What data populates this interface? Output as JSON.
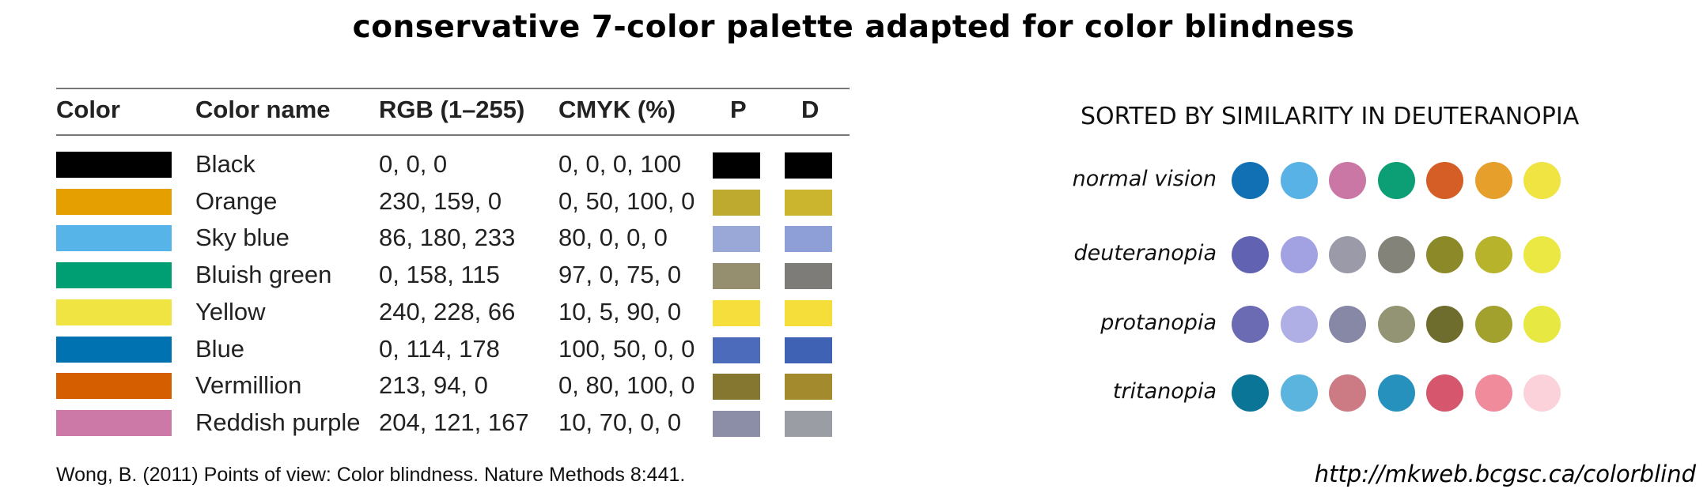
{
  "title": "conservative 7-color palette adapted for color blindness",
  "table": {
    "headers": [
      "Color",
      "Color name",
      "RGB (1–255)",
      "CMYK (%)",
      "P",
      "D"
    ],
    "rows": [
      {
        "swatch": "#000000",
        "name": "Black",
        "rgb": "0, 0, 0",
        "cmyk": "0, 0, 0, 100",
        "p": "#000000",
        "d": "#000000"
      },
      {
        "swatch": "#E69F00",
        "name": "Orange",
        "rgb": "230, 159, 0",
        "cmyk": "0, 50, 100, 0",
        "p": "#BFAA30",
        "d": "#CBB42E"
      },
      {
        "swatch": "#56B4E9",
        "name": "Sky blue",
        "rgb": "86, 180, 233",
        "cmyk": "80, 0, 0, 0",
        "p": "#9AA8D8",
        "d": "#8E9ED6"
      },
      {
        "swatch": "#009E73",
        "name": "Bluish green",
        "rgb": "0, 158, 115",
        "cmyk": "97, 0, 75, 0",
        "p": "#958F70",
        "d": "#7E7C78"
      },
      {
        "swatch": "#F0E442",
        "name": "Yellow",
        "rgb": "240, 228, 66",
        "cmyk": "10, 5, 90, 0",
        "p": "#F6DF3C",
        "d": "#F5DE3A"
      },
      {
        "swatch": "#0072B2",
        "name": "Blue",
        "rgb": "0, 114, 178",
        "cmyk": "100, 50, 0, 0",
        "p": "#4D6BBB",
        "d": "#3F62B4"
      },
      {
        "swatch": "#D55E00",
        "name": "Vermillion",
        "rgb": "213, 94, 0",
        "cmyk": "0, 80, 100, 0",
        "p": "#857730",
        "d": "#A28A2D"
      },
      {
        "swatch": "#CC79A7",
        "name": "Reddish purple",
        "rgb": "204, 121, 167",
        "cmyk": "10, 70, 0, 0",
        "p": "#8C8DA7",
        "d": "#9A9DA3"
      }
    ]
  },
  "citation": "Wong, B. (2011) Points of view: Color blindness. Nature Methods 8:441.",
  "similarity": {
    "heading": "SORTED BY SIMILARITY IN DEUTERANOPIA",
    "rows": [
      {
        "label": "normal vision",
        "colors": [
          "#1070B3",
          "#59B2E6",
          "#CA77A6",
          "#0C9E74",
          "#D45E25",
          "#E69F2B",
          "#F0E442"
        ]
      },
      {
        "label": "deuteranopia",
        "colors": [
          "#6262B3",
          "#A2A2E3",
          "#9A9AA8",
          "#83837A",
          "#8C8A28",
          "#B7B42B",
          "#EBE843"
        ]
      },
      {
        "label": "protanopia",
        "colors": [
          "#6B6BB3",
          "#AFAFE6",
          "#8787A6",
          "#929473",
          "#6E6D2E",
          "#A3A12D",
          "#E8E843"
        ]
      },
      {
        "label": "tritanopia",
        "colors": [
          "#0B7598",
          "#5AB4DE",
          "#CC7B85",
          "#2791BD",
          "#D5566D",
          "#EF8B9B",
          "#FBD2DA"
        ]
      }
    ]
  },
  "url": "http://mkweb.bcgsc.ca/colorblind"
}
